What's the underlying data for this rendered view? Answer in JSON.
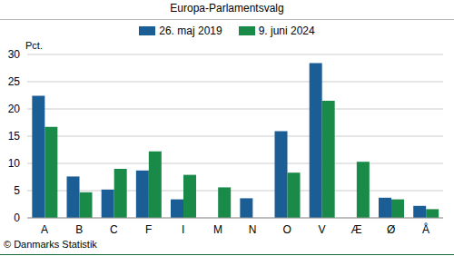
{
  "chart_data": {
    "type": "bar",
    "title": "Europa-Parlamentsvalg",
    "y_label": "Pct.",
    "source": "© Danmarks Statistik",
    "categories": [
      "A",
      "B",
      "C",
      "F",
      "I",
      "M",
      "N",
      "O",
      "V",
      "Æ",
      "Ø",
      "Å"
    ],
    "series": [
      {
        "name": "26. maj 2019",
        "color": "#1b5e96",
        "values": [
          22.4,
          7.6,
          5.2,
          8.7,
          3.4,
          null,
          3.6,
          15.9,
          28.4,
          null,
          3.7,
          2.2
        ]
      },
      {
        "name": "9. juni 2024",
        "color": "#1a8a48",
        "values": [
          16.7,
          4.7,
          9.0,
          12.2,
          7.9,
          5.6,
          null,
          8.3,
          21.5,
          10.3,
          3.4,
          1.6
        ]
      }
    ],
    "ylim": [
      0,
      30
    ],
    "yticks": [
      0,
      5,
      10,
      15,
      20,
      25,
      30
    ],
    "grid": true
  }
}
